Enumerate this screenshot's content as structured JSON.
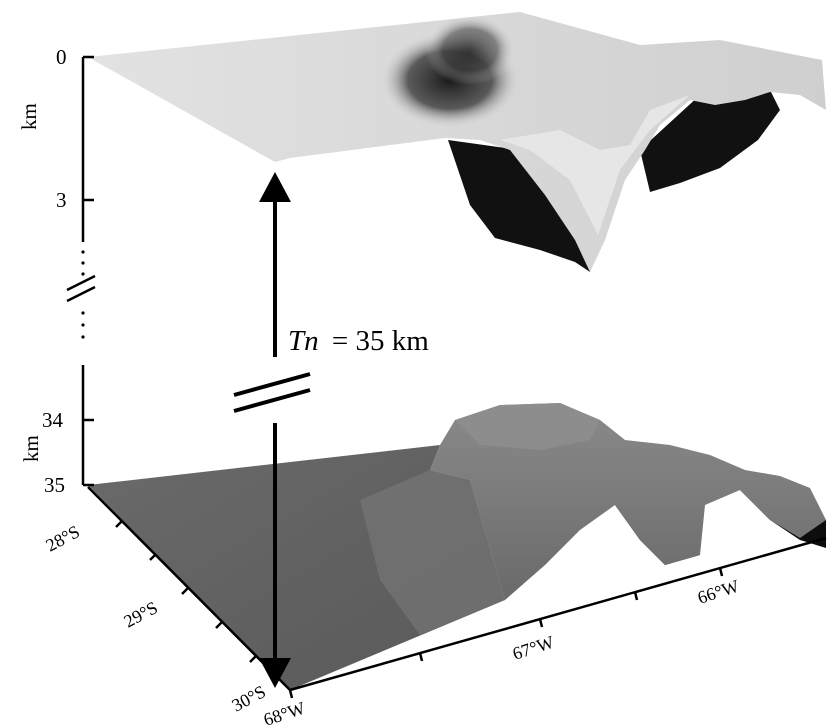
{
  "vertical_axis": {
    "tick_top_0": "0",
    "tick_3": "3",
    "tick_34": "34",
    "tick_35": "35",
    "unit_upper": "km",
    "unit_lower": "km"
  },
  "annotation": {
    "symbol": "Tn",
    "equals_value": "= 35 km"
  },
  "latitude_ticks": [
    "28°S",
    "29°S",
    "30°S"
  ],
  "longitude_ticks": [
    "68°W",
    "67°W",
    "66°W"
  ],
  "colors": {
    "upper_surface_light": "#d9d9d9",
    "upper_surface_dark": "#1a1a1a",
    "lower_surface": "#6e6e6e",
    "lower_surface_light": "#9a9a9a",
    "shadow": "#0d0d0d"
  }
}
